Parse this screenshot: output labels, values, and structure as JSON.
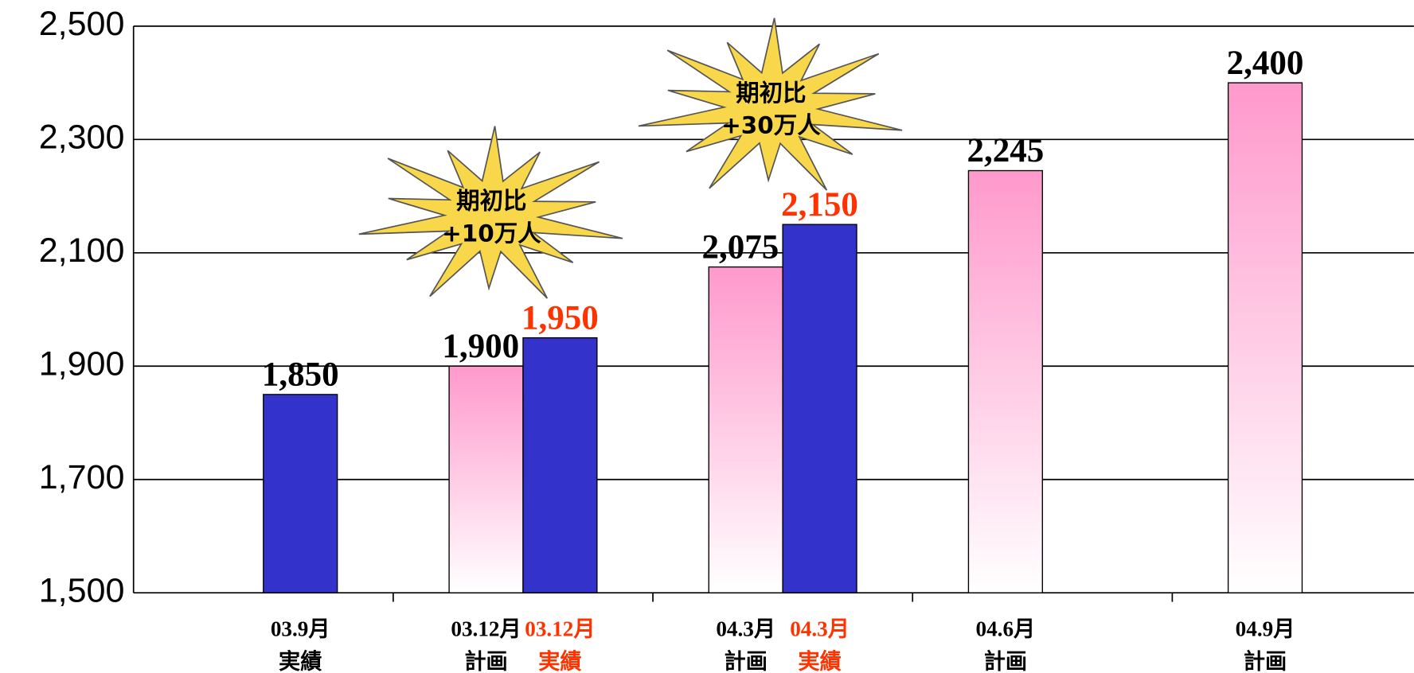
{
  "chart_data": {
    "type": "bar",
    "categories": [
      "03.9月",
      "03.12月",
      "04.3月",
      "04.6月",
      "04.9月"
    ],
    "series": [
      {
        "name": "計画",
        "color": "#ff99cc",
        "gradient": true,
        "values": [
          null,
          1900,
          2075,
          2245,
          2400
        ],
        "value_labels": [
          null,
          "1,900",
          "2,075",
          "2,245",
          "2,400"
        ],
        "label_colors": [
          null,
          "#000000",
          "#000000",
          "#000000",
          "#000000"
        ]
      },
      {
        "name": "実績",
        "color": "#3333cc",
        "gradient": false,
        "values": [
          1850,
          1950,
          2150,
          null,
          null
        ],
        "value_labels": [
          "1,850",
          "1,950",
          "2,150",
          null,
          null
        ],
        "label_colors": [
          "#000000",
          "#ff3300",
          "#ff3300",
          null,
          null
        ]
      }
    ],
    "ylim": [
      1500,
      2500
    ],
    "yticks": [
      {
        "value": 1500,
        "label": "1,500"
      },
      {
        "value": 1700,
        "label": "1,700"
      },
      {
        "value": 1900,
        "label": "1,900"
      },
      {
        "value": 2100,
        "label": "2,100"
      },
      {
        "value": 2300,
        "label": "2,300"
      },
      {
        "value": 2500,
        "label": "2,500"
      }
    ],
    "grid": true,
    "annotations": [
      {
        "lines": [
          "期初比",
          "+10万人"
        ]
      },
      {
        "lines": [
          "期初比",
          "+30万人"
        ]
      }
    ]
  }
}
